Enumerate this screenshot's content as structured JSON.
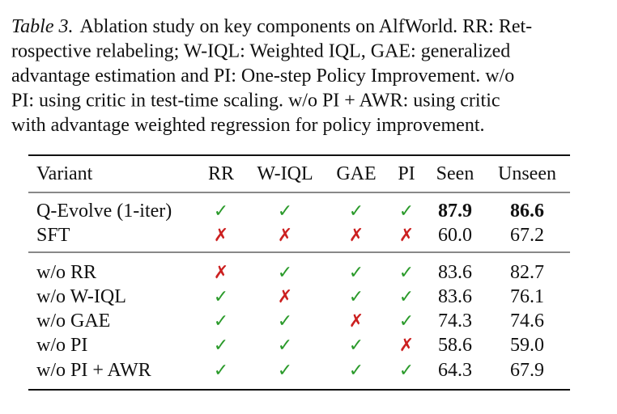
{
  "caption": {
    "label": "Table 3.",
    "lines": [
      "Ablation study on key components on AlfWorld. RR: Ret-",
      "rospective relabeling; W-IQL: Weighted IQL, GAE: generalized",
      "advantage estimation and PI: One-step Policy Improvement. w/o",
      "PI: using critic in test-time scaling.  w/o PI + AWR: using critic",
      "with advantage weighted regression for policy improvement."
    ]
  },
  "table": {
    "header": [
      "Variant",
      "RR",
      "W-IQL",
      "GAE",
      "PI",
      "Seen",
      "Unseen"
    ],
    "symbol_colors": {
      "✓": "#2a9a2a",
      "✗": "#cc2020"
    },
    "groups": [
      [
        [
          "Q-Evolve (1-iter)",
          "✓",
          "✓",
          "✓",
          "✓",
          "87.9",
          "86.6"
        ],
        [
          "SFT",
          "✗",
          "✗",
          "✗",
          "✗",
          "60.0",
          "67.2"
        ]
      ],
      [
        [
          "w/o RR",
          "✗",
          "✓",
          "✓",
          "✓",
          "83.6",
          "82.7"
        ],
        [
          "w/o W-IQL",
          "✓",
          "✗",
          "✓",
          "✓",
          "83.6",
          "76.1"
        ],
        [
          "w/o GAE",
          "✓",
          "✓",
          "✗",
          "✓",
          "74.3",
          "74.6"
        ],
        [
          "w/o PI",
          "✓",
          "✓",
          "✓",
          "✗",
          "58.6",
          "59.0"
        ],
        [
          "w/o PI + AWR",
          "✓",
          "✓",
          "✓",
          "✓",
          "64.3",
          "67.9"
        ]
      ]
    ]
  }
}
